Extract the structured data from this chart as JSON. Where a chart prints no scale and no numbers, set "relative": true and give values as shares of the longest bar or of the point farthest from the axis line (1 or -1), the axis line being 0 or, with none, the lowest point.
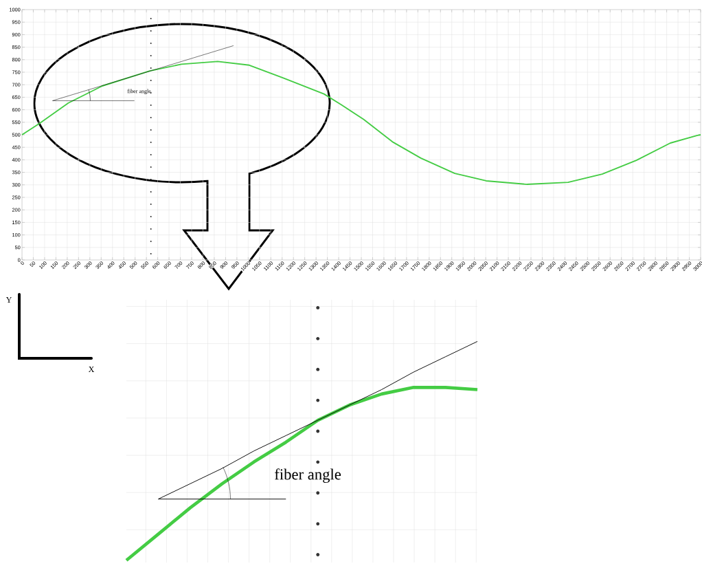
{
  "chart_data": [
    {
      "type": "line",
      "x": [
        0,
        75,
        205,
        355,
        565,
        705,
        865,
        1005,
        1155,
        1335,
        1410,
        1510,
        1641,
        1763,
        1913,
        2052,
        2233,
        2414,
        2565,
        2716,
        2866,
        2983,
        3000
      ],
      "series": [
        {
          "color": "#44cc44",
          "values": [
            500,
            544,
            627,
            695,
            755,
            782,
            793,
            778,
            727,
            663,
            621,
            562,
            470,
            407,
            346,
            316,
            302,
            310,
            343,
            398,
            467,
            497,
            500
          ]
        },
        {
          "color": "#000000",
          "x": [
            135,
            935
          ],
          "values": [
            636,
            856
          ]
        },
        {
          "color": "#000000",
          "x": [
            135,
            497
          ],
          "values": [
            636,
            636
          ]
        }
      ],
      "xlim": [
        0,
        3000
      ],
      "ylim": [
        0,
        1000
      ],
      "xticks": [
        0,
        50,
        100,
        150,
        200,
        250,
        300,
        350,
        400,
        450,
        500,
        550,
        600,
        650,
        700,
        750,
        800,
        850,
        900,
        950,
        1000,
        1050,
        1100,
        1150,
        1200,
        1250,
        1300,
        1350,
        1400,
        1450,
        1500,
        1550,
        1600,
        1650,
        1700,
        1750,
        1800,
        1850,
        1900,
        1950,
        2000,
        2050,
        2100,
        2150,
        2200,
        2250,
        2300,
        2350,
        2400,
        2450,
        2500,
        2550,
        2600,
        2650,
        2700,
        2750,
        2800,
        2850,
        2900,
        2950,
        3000
      ],
      "yticks": [
        0,
        50,
        100,
        150,
        200,
        250,
        300,
        350,
        400,
        450,
        500,
        550,
        600,
        650,
        700,
        750,
        800,
        850,
        900,
        950,
        1000
      ],
      "grid": true,
      "ref_lines": [
        {
          "axis": "x",
          "value": 570,
          "line_style": "dotted"
        }
      ],
      "annotations": [
        "fiber angle"
      ]
    },
    {
      "type": "line",
      "relative": true,
      "categories": [
        null,
        null,
        null,
        null,
        null,
        null,
        null,
        null,
        null,
        null,
        null,
        null
      ],
      "series": [
        {
          "color": "#44cc44",
          "values": [
            0,
            0.12,
            0.24,
            0.35,
            0.45,
            0.54,
            0.64,
            0.71,
            0.76,
            0.79,
            0.79,
            0.78
          ]
        },
        {
          "color": "#000000",
          "values": [
            null,
            0.28,
            0.35,
            0.42,
            0.5,
            0.57,
            0.64,
            0.71,
            0.78,
            0.86,
            0.93,
            1
          ]
        },
        {
          "color": "#000000",
          "values": [
            null,
            0.28,
            0.28,
            0.28,
            0.28,
            0.28,
            null,
            null,
            null,
            null,
            null,
            null
          ]
        }
      ],
      "grid": true,
      "annotations": [
        "fiber angle",
        "Y",
        "X"
      ]
    }
  ]
}
